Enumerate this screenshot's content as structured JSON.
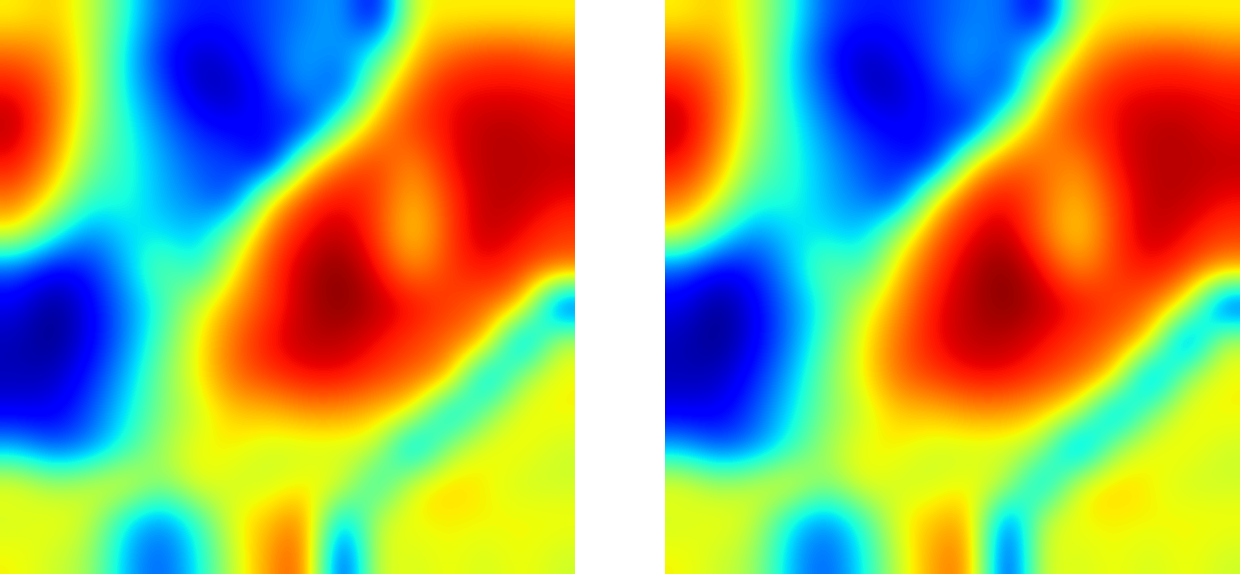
{
  "chart_data": [
    {
      "type": "heatmap",
      "tick_labels": false,
      "color_range": [
        -1,
        1
      ],
      "cells": [
        [
          0.3,
          0.4,
          0.2,
          -0.2,
          -0.6,
          -0.7,
          -0.7,
          -0.6,
          -0.5,
          -0.4,
          -0.9,
          0.3,
          0.3,
          0.3,
          0.3,
          0.3
        ],
        [
          0.6,
          0.5,
          0.2,
          -0.3,
          -0.7,
          -0.9,
          -0.8,
          -0.6,
          -0.4,
          -0.5,
          -0.2,
          0.4,
          0.6,
          0.7,
          0.7,
          0.6
        ],
        [
          0.8,
          0.6,
          0.2,
          -0.3,
          -0.6,
          -0.9,
          -0.9,
          -0.7,
          -0.4,
          -0.7,
          0.2,
          0.6,
          0.8,
          0.8,
          0.8,
          0.8
        ],
        [
          0.9,
          0.6,
          0.1,
          -0.2,
          -0.5,
          -0.7,
          -0.8,
          -0.7,
          -0.8,
          0.0,
          0.5,
          0.7,
          0.8,
          0.9,
          0.9,
          0.8
        ],
        [
          0.8,
          0.5,
          0.0,
          -0.2,
          -0.4,
          -0.6,
          -0.6,
          -0.9,
          0.2,
          0.6,
          0.7,
          0.5,
          0.8,
          0.9,
          0.9,
          0.9
        ],
        [
          0.6,
          0.3,
          -0.2,
          -0.2,
          -0.4,
          -0.5,
          -0.7,
          0.3,
          0.7,
          0.8,
          0.7,
          0.4,
          0.7,
          0.9,
          0.9,
          0.8
        ],
        [
          0.3,
          -0.2,
          -0.5,
          -0.3,
          -0.3,
          -0.4,
          0.0,
          0.6,
          0.8,
          0.9,
          0.7,
          0.3,
          0.7,
          0.9,
          0.8,
          0.7
        ],
        [
          -0.6,
          -0.8,
          -0.7,
          -0.4,
          0.0,
          -0.3,
          0.3,
          0.7,
          0.9,
          1.0,
          0.8,
          0.5,
          0.7,
          0.8,
          0.7,
          0.6
        ],
        [
          -0.8,
          -1.0,
          -0.8,
          -0.5,
          -0.2,
          0.2,
          0.5,
          0.7,
          0.9,
          1.0,
          0.9,
          0.8,
          0.7,
          0.6,
          0.5,
          -0.8
        ],
        [
          -0.9,
          -1.0,
          -0.8,
          -0.5,
          -0.1,
          0.3,
          0.6,
          0.8,
          0.9,
          0.9,
          0.8,
          0.7,
          0.6,
          0.5,
          -0.7,
          0.2
        ],
        [
          -0.9,
          -0.9,
          -0.7,
          -0.4,
          0.0,
          0.3,
          0.6,
          0.7,
          0.8,
          0.8,
          0.7,
          0.6,
          0.5,
          -0.6,
          0.1,
          0.3
        ],
        [
          -0.8,
          -0.8,
          -0.6,
          -0.3,
          0.0,
          0.2,
          0.4,
          0.4,
          0.5,
          0.5,
          0.4,
          0.3,
          -0.5,
          0.0,
          0.3,
          0.3
        ],
        [
          -0.4,
          -0.6,
          -0.5,
          -0.2,
          0.1,
          0.3,
          0.3,
          0.2,
          0.2,
          0.2,
          0.2,
          -0.6,
          0.1,
          0.3,
          0.3,
          0.2
        ],
        [
          0.3,
          0.1,
          0.2,
          0.3,
          0.0,
          0.3,
          0.2,
          0.2,
          0.3,
          0.3,
          -0.3,
          0.3,
          0.4,
          0.3,
          0.2,
          0.2
        ],
        [
          0.2,
          0.3,
          0.2,
          -0.3,
          -0.5,
          -0.2,
          0.3,
          0.4,
          0.6,
          -0.5,
          0.2,
          0.3,
          0.3,
          0.3,
          0.3,
          0.3
        ],
        [
          0.3,
          0.2,
          0.1,
          -0.4,
          -0.6,
          -0.3,
          0.2,
          0.5,
          0.7,
          -0.9,
          0.3,
          0.2,
          0.3,
          0.2,
          0.3,
          0.2
        ]
      ]
    },
    {
      "type": "heatmap",
      "tick_labels": false,
      "color_range": [
        -1,
        1
      ],
      "cells": [
        [
          0.3,
          0.4,
          0.2,
          -0.2,
          -0.6,
          -0.7,
          -0.7,
          -0.6,
          -0.5,
          -0.5,
          -0.9,
          0.2,
          0.3,
          0.3,
          0.3,
          0.3
        ],
        [
          0.6,
          0.5,
          0.2,
          -0.3,
          -0.7,
          -0.9,
          -0.8,
          -0.6,
          -0.4,
          -0.6,
          -0.1,
          0.4,
          0.6,
          0.7,
          0.7,
          0.6
        ],
        [
          0.8,
          0.6,
          0.2,
          -0.3,
          -0.6,
          -0.9,
          -0.9,
          -0.7,
          -0.5,
          -0.7,
          0.3,
          0.6,
          0.8,
          0.8,
          0.8,
          0.8
        ],
        [
          0.9,
          0.6,
          0.1,
          -0.2,
          -0.5,
          -0.7,
          -0.8,
          -0.7,
          -0.8,
          0.1,
          0.5,
          0.7,
          0.8,
          0.9,
          0.9,
          0.8
        ],
        [
          0.8,
          0.5,
          0.0,
          -0.2,
          -0.4,
          -0.6,
          -0.7,
          -0.8,
          0.3,
          0.6,
          0.6,
          0.5,
          0.8,
          0.9,
          0.9,
          0.9
        ],
        [
          0.6,
          0.3,
          -0.2,
          -0.2,
          -0.4,
          -0.5,
          -0.7,
          0.3,
          0.7,
          0.8,
          0.6,
          0.4,
          0.7,
          0.9,
          0.9,
          0.8
        ],
        [
          0.3,
          -0.2,
          -0.5,
          -0.3,
          -0.3,
          -0.4,
          0.1,
          0.6,
          0.8,
          0.9,
          0.6,
          0.3,
          0.7,
          0.9,
          0.8,
          0.7
        ],
        [
          -0.6,
          -0.8,
          -0.7,
          -0.4,
          0.0,
          -0.2,
          0.4,
          0.7,
          0.9,
          1.0,
          0.8,
          0.5,
          0.7,
          0.8,
          0.7,
          0.5
        ],
        [
          -0.8,
          -1.0,
          -0.8,
          -0.5,
          -0.2,
          0.2,
          0.5,
          0.8,
          0.9,
          1.0,
          0.9,
          0.8,
          0.7,
          0.6,
          0.3,
          -0.8
        ],
        [
          -0.9,
          -1.0,
          -0.8,
          -0.5,
          -0.1,
          0.3,
          0.6,
          0.8,
          0.9,
          0.9,
          0.8,
          0.7,
          0.6,
          0.4,
          -0.8,
          0.2
        ],
        [
          -0.9,
          -0.9,
          -0.7,
          -0.4,
          0.0,
          0.3,
          0.6,
          0.7,
          0.8,
          0.8,
          0.7,
          0.6,
          0.4,
          -0.7,
          0.1,
          0.3
        ],
        [
          -0.8,
          -0.8,
          -0.6,
          -0.3,
          0.0,
          0.2,
          0.4,
          0.4,
          0.5,
          0.5,
          0.4,
          0.2,
          -0.6,
          0.0,
          0.3,
          0.3
        ],
        [
          -0.4,
          -0.6,
          -0.5,
          -0.2,
          0.1,
          0.3,
          0.3,
          0.2,
          0.2,
          0.2,
          0.1,
          -0.7,
          0.1,
          0.3,
          0.3,
          0.2
        ],
        [
          0.3,
          0.1,
          0.2,
          0.3,
          0.0,
          0.3,
          0.2,
          0.2,
          0.3,
          0.2,
          -0.5,
          0.3,
          0.4,
          0.3,
          0.2,
          0.2
        ],
        [
          0.2,
          0.3,
          0.2,
          -0.3,
          -0.5,
          -0.2,
          0.3,
          0.4,
          0.5,
          -0.7,
          0.2,
          0.3,
          0.3,
          0.3,
          0.3,
          0.3
        ],
        [
          0.3,
          0.2,
          0.1,
          -0.4,
          -0.6,
          -0.3,
          0.2,
          0.5,
          0.6,
          -0.9,
          0.3,
          0.2,
          0.3,
          0.2,
          0.3,
          0.2
        ]
      ]
    }
  ]
}
